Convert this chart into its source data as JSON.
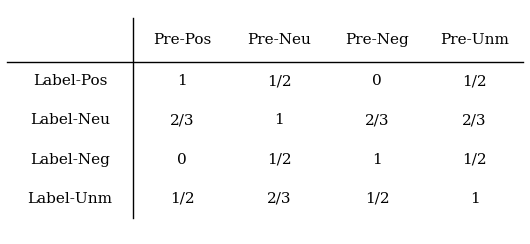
{
  "col_headers": [
    "Pre-Pos",
    "Pre-Neu",
    "Pre-Neg",
    "Pre-Unm"
  ],
  "row_headers": [
    "Label-Pos",
    "Label-Neu",
    "Label-Neg",
    "Label-Unm"
  ],
  "cell_values": [
    [
      "1",
      "1/2",
      "0",
      "1/2"
    ],
    [
      "2/3",
      "1",
      "2/3",
      "2/3"
    ],
    [
      "0",
      "1/2",
      "1",
      "1/2"
    ],
    [
      "1/2",
      "2/3",
      "1/2",
      "1"
    ]
  ],
  "font_size": 11,
  "bg_color": "#ffffff",
  "text_color": "#000000",
  "figsize": [
    5.3,
    2.44
  ],
  "dpi": 100
}
